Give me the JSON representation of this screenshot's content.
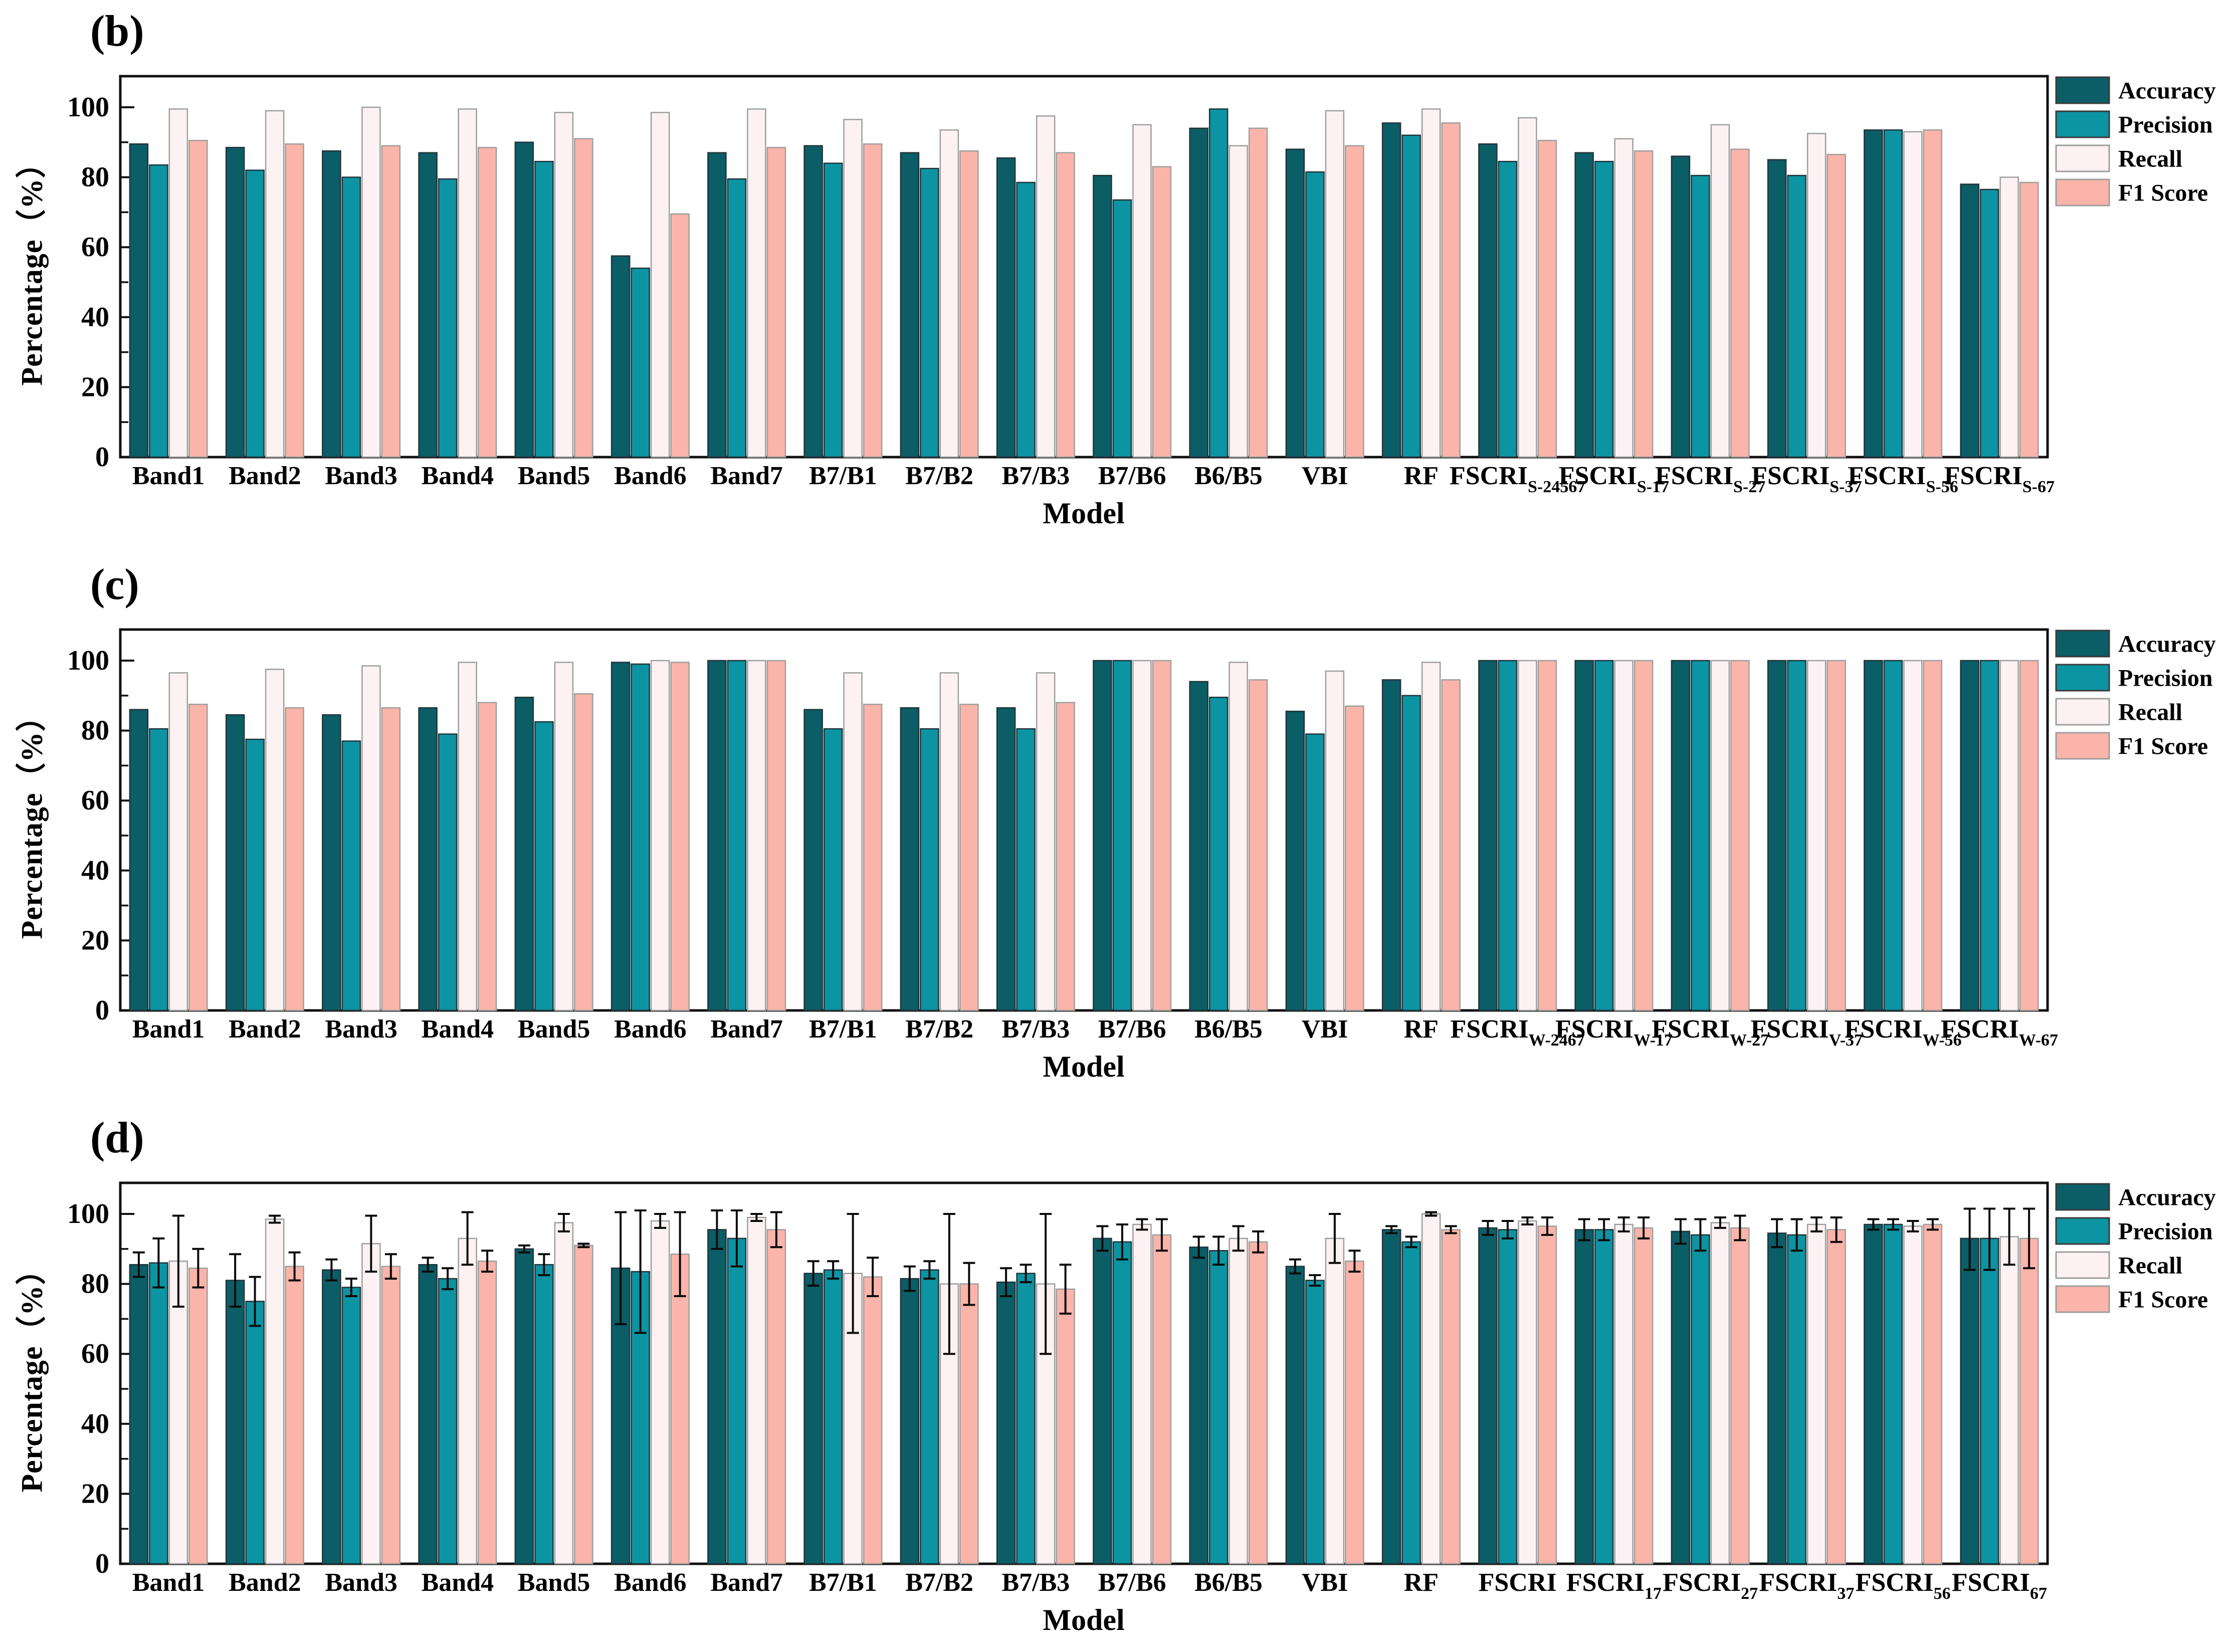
{
  "chart_data": [
    {
      "type": "bar",
      "panel_label": "(b)",
      "title": "",
      "xlabel": "Model",
      "ylabel": "Percentage（%）",
      "ylim": [
        0,
        110
      ],
      "yticks": [
        0,
        20,
        40,
        60,
        80,
        100
      ],
      "grid": false,
      "legend_position": "outside-right-top",
      "legend": [
        "Accuracy",
        "Precision",
        "Recall",
        "F1 Score"
      ],
      "categories": [
        "Band1",
        "Band2",
        "Band3",
        "Band4",
        "Band5",
        "Band6",
        "Band7",
        "B7/B1",
        "B7/B2",
        "B7/B3",
        "B7/B6",
        "B6/B5",
        "VBI",
        "RF",
        "FSCRI",
        "FSCRI",
        "FSCRI",
        "FSCRI",
        "FSCRI",
        "FSCRI"
      ],
      "subscripts": [
        "",
        "",
        "",
        "",
        "",
        "",
        "",
        "",
        "",
        "",
        "",
        "",
        "",
        "",
        "S-24567",
        "S-17",
        "S-27",
        "S-37",
        "S-56",
        "S-67"
      ],
      "series": [
        {
          "name": "Accuracy",
          "color": "#0b5d66",
          "values": [
            89.5,
            88.5,
            87.5,
            87,
            90,
            57.5,
            87,
            89,
            87,
            85.5,
            80.5,
            94,
            88,
            95.5,
            89.5,
            87,
            86,
            85,
            93.5,
            78
          ]
        },
        {
          "name": "Precision",
          "color": "#0c94a2",
          "values": [
            83.5,
            82,
            80,
            79.5,
            84.5,
            54,
            79.5,
            84,
            82.5,
            78.5,
            73.5,
            99.5,
            81.5,
            92,
            84.5,
            84.5,
            80.5,
            80.5,
            93.5,
            76.5
          ]
        },
        {
          "name": "Recall",
          "color": "#fdf2f3",
          "values": [
            99.5,
            99,
            100,
            99.5,
            98.5,
            98.5,
            99.5,
            96.5,
            93.5,
            97.5,
            95,
            89,
            99,
            99.5,
            97,
            91,
            95,
            92.5,
            93,
            80
          ]
        },
        {
          "name": "F1 Score",
          "color": "#fbb4a9",
          "values": [
            90.5,
            89.5,
            89,
            88.5,
            91,
            69.5,
            88.5,
            89.5,
            87.5,
            87,
            83,
            94,
            89,
            95.5,
            90.5,
            87.5,
            88,
            86.5,
            93.5,
            78.5
          ]
        }
      ],
      "error_bars": null
    },
    {
      "type": "bar",
      "panel_label": "(c)",
      "title": "",
      "xlabel": "Model",
      "ylabel": "Percentage（%）",
      "ylim": [
        0,
        110
      ],
      "yticks": [
        0,
        20,
        40,
        60,
        80,
        100
      ],
      "grid": false,
      "legend_position": "outside-right-top",
      "legend": [
        "Accuracy",
        "Precision",
        "Recall",
        "F1 Score"
      ],
      "categories": [
        "Band1",
        "Band2",
        "Band3",
        "Band4",
        "Band5",
        "Band6",
        "Band7",
        "B7/B1",
        "B7/B2",
        "B7/B3",
        "B7/B6",
        "B6/B5",
        "VBI",
        "RF",
        "FSCRI",
        "FSCRI",
        "FSCRI",
        "FSCRI",
        "FSCRI",
        "FSCRI"
      ],
      "subscripts": [
        "",
        "",
        "",
        "",
        "",
        "",
        "",
        "",
        "",
        "",
        "",
        "",
        "",
        "",
        "W-2467",
        "W-17",
        "W-27",
        "V-37",
        "W-56",
        "W-67"
      ],
      "series": [
        {
          "name": "Accuracy",
          "color": "#0b5d66",
          "values": [
            86,
            84.5,
            84.5,
            86.5,
            89.5,
            99.5,
            100,
            86,
            86.5,
            86.5,
            100,
            94,
            85.5,
            94.5,
            100,
            100,
            100,
            100,
            100,
            100
          ]
        },
        {
          "name": "Precision",
          "color": "#0c94a2",
          "values": [
            80.5,
            77.5,
            77,
            79,
            82.5,
            99,
            100,
            80.5,
            80.5,
            80.5,
            100,
            89.5,
            79,
            90,
            100,
            100,
            100,
            100,
            100,
            100
          ]
        },
        {
          "name": "Recall",
          "color": "#fdf2f3",
          "values": [
            96.5,
            97.5,
            98.5,
            99.5,
            99.5,
            100,
            100,
            96.5,
            96.5,
            96.5,
            100,
            99.5,
            97,
            99.5,
            100,
            100,
            100,
            100,
            100,
            100
          ]
        },
        {
          "name": "F1 Score",
          "color": "#fbb4a9",
          "values": [
            87.5,
            86.5,
            86.5,
            88,
            90.5,
            99.5,
            100,
            87.5,
            87.5,
            88,
            100,
            94.5,
            87,
            94.5,
            100,
            100,
            100,
            100,
            100,
            100
          ]
        }
      ],
      "error_bars": null
    },
    {
      "type": "bar",
      "panel_label": "(d)",
      "title": "",
      "xlabel": "Model",
      "ylabel": "Percentage（%）",
      "ylim": [
        0,
        110
      ],
      "yticks": [
        0,
        20,
        40,
        60,
        80,
        100
      ],
      "grid": false,
      "legend_position": "outside-right-top",
      "legend": [
        "Accuracy",
        "Precision",
        "Recall",
        "F1 Score"
      ],
      "categories": [
        "Band1",
        "Band2",
        "Band3",
        "Band4",
        "Band5",
        "Band6",
        "Band7",
        "B7/B1",
        "B7/B2",
        "B7/B3",
        "B7/B6",
        "B6/B5",
        "VBI",
        "RF",
        "FSCRI",
        "FSCRI",
        "FSCRI",
        "FSCRI",
        "FSCRI",
        "FSCRI"
      ],
      "subscripts": [
        "",
        "",
        "",
        "",
        "",
        "",
        "",
        "",
        "",
        "",
        "",
        "",
        "",
        "",
        "",
        "17",
        "27",
        "37",
        "56",
        "67"
      ],
      "series": [
        {
          "name": "Accuracy",
          "color": "#0b5d66",
          "values": [
            85.5,
            81,
            84,
            85.5,
            90,
            84.5,
            95.5,
            83,
            81.5,
            80.5,
            93,
            90.5,
            85,
            95.5,
            96,
            95.5,
            95,
            94.5,
            97,
            93
          ]
        },
        {
          "name": "Precision",
          "color": "#0c94a2",
          "values": [
            86,
            75,
            79,
            81.5,
            85.5,
            83.5,
            93,
            84,
            84,
            83,
            92,
            89.5,
            81,
            92,
            95.5,
            95.5,
            94,
            94,
            97,
            93
          ]
        },
        {
          "name": "Recall",
          "color": "#fdf2f3",
          "values": [
            86.5,
            98.5,
            91.5,
            93,
            97.5,
            98,
            99,
            83,
            80,
            80,
            97,
            93,
            93,
            100,
            98,
            97,
            97.5,
            97,
            96.5,
            93.5
          ]
        },
        {
          "name": "F1 Score",
          "color": "#fbb4a9",
          "values": [
            84.5,
            85,
            85,
            86.5,
            91,
            88.5,
            95.5,
            82,
            80,
            78.5,
            94,
            92,
            86.5,
            95.5,
            96.5,
            96,
            96,
            95.5,
            97,
            93
          ]
        }
      ],
      "error_bars": {
        "Accuracy": [
          3.5,
          7.5,
          3,
          2,
          1,
          16,
          5.5,
          3.5,
          3.5,
          4,
          3.5,
          3,
          2,
          1,
          2,
          3,
          3.5,
          4,
          1.5,
          9
        ],
        "Precision": [
          7,
          7,
          2.5,
          3,
          3,
          17.5,
          8,
          2.5,
          2.5,
          2.5,
          5,
          4,
          1.5,
          1.5,
          2.5,
          3,
          4.5,
          4.5,
          1.5,
          9
        ],
        "Recall": [
          13,
          1,
          8,
          7.5,
          2.5,
          2,
          1,
          17,
          20,
          20,
          1.5,
          3.5,
          7,
          0.5,
          1,
          2,
          1.5,
          2,
          1.5,
          8
        ],
        "F1 Score": [
          5.5,
          4,
          3.5,
          3,
          0.5,
          12,
          5,
          5.5,
          6,
          7,
          4.5,
          3,
          3,
          1,
          2.5,
          3,
          3.5,
          3.5,
          1.5,
          8.5
        ]
      }
    }
  ]
}
